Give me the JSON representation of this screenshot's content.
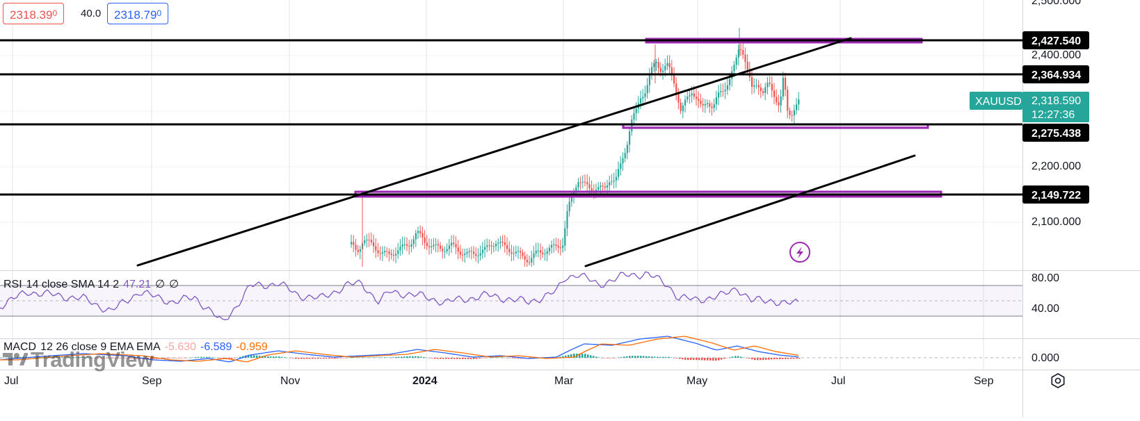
{
  "quote": {
    "bid": "2318.39",
    "bid_sup": "0",
    "spread": "40.0",
    "ask": "2318.79",
    "ask_sup": "0"
  },
  "symbol": {
    "label": "XAUUSD",
    "last_price": "2,318.590",
    "countdown": "12:27:36",
    "color": "#26a69a"
  },
  "price_scale": {
    "ticks": [
      "2,400.000",
      "2,200.000",
      "2,100.000"
    ],
    "top_tick_partial": "2,500.000"
  },
  "horizontal_lines": [
    {
      "label": "2,427.540",
      "value": 2427.54
    },
    {
      "label": "2,364.934",
      "value": 2364.934
    },
    {
      "label": "2,275.438",
      "value": 2275.438
    },
    {
      "label": "2,149.722",
      "value": 2149.722
    }
  ],
  "rsi": {
    "name": "RSI",
    "params": "14 close SMA 14 2",
    "value": "47.21",
    "extra1": "∅",
    "extra2": "∅",
    "scale_ticks": [
      "80.00",
      "40.00"
    ],
    "color": "#7e57c2"
  },
  "macd": {
    "name": "MACD",
    "params": "12 26 close 9 EMA EMA",
    "histogram": "-5.630",
    "macd": "-6.589",
    "signal": "-0.959",
    "scale_ticks": [
      "0.000"
    ],
    "colors": {
      "macd": "#2962ff",
      "signal": "#ff6d00",
      "hist_pos": "#26a69a",
      "hist_neg": "#ef5350"
    }
  },
  "time_axis": [
    "Jul",
    "Sep",
    "Nov",
    "2024",
    "Mar",
    "May",
    "Jul",
    "Sep"
  ],
  "watermark": "TradingView",
  "icons": {
    "settings": "gear-icon",
    "flash": "lightning-icon"
  },
  "colors": {
    "up": "#26a69a",
    "down": "#ef5350",
    "zone": "#9c27b0",
    "line": "#000000",
    "grid": "#e0e3eb"
  },
  "chart_data": {
    "type": "candlestick",
    "symbol": "XAUUSD",
    "ylim": [
      2050,
      2490
    ],
    "horizontal_levels": [
      2427.54,
      2364.934,
      2275.438,
      2149.722
    ],
    "candles_approx": [
      {
        "date": "2023-11-30",
        "open": 2044,
        "high": 2148,
        "low": 2030,
        "close": 2072
      },
      {
        "date": "2023-12-27",
        "open": 2066,
        "high": 2088,
        "low": 2060,
        "close": 2077
      },
      {
        "date": "2024-01-31",
        "open": 2038,
        "high": 2066,
        "low": 2034,
        "close": 2054
      },
      {
        "date": "2024-02-29",
        "open": 2041,
        "high": 2060,
        "low": 2035,
        "close": 2058
      },
      {
        "date": "2024-03-08",
        "open": 2160,
        "high": 2195,
        "low": 2150,
        "close": 2179
      },
      {
        "date": "2024-03-28",
        "open": 2200,
        "high": 2236,
        "low": 2196,
        "close": 2233
      },
      {
        "date": "2024-04-12",
        "open": 2375,
        "high": 2431,
        "low": 2337,
        "close": 2344
      },
      {
        "date": "2024-04-30",
        "open": 2334,
        "high": 2340,
        "low": 2286,
        "close": 2286
      },
      {
        "date": "2024-05-20",
        "open": 2415,
        "high": 2450,
        "low": 2410,
        "close": 2425
      },
      {
        "date": "2024-06-07",
        "open": 2376,
        "high": 2388,
        "low": 2287,
        "close": 2294
      },
      {
        "date": "2024-06-20",
        "open": 2330,
        "high": 2345,
        "low": 2315,
        "close": 2318.59
      }
    ]
  }
}
